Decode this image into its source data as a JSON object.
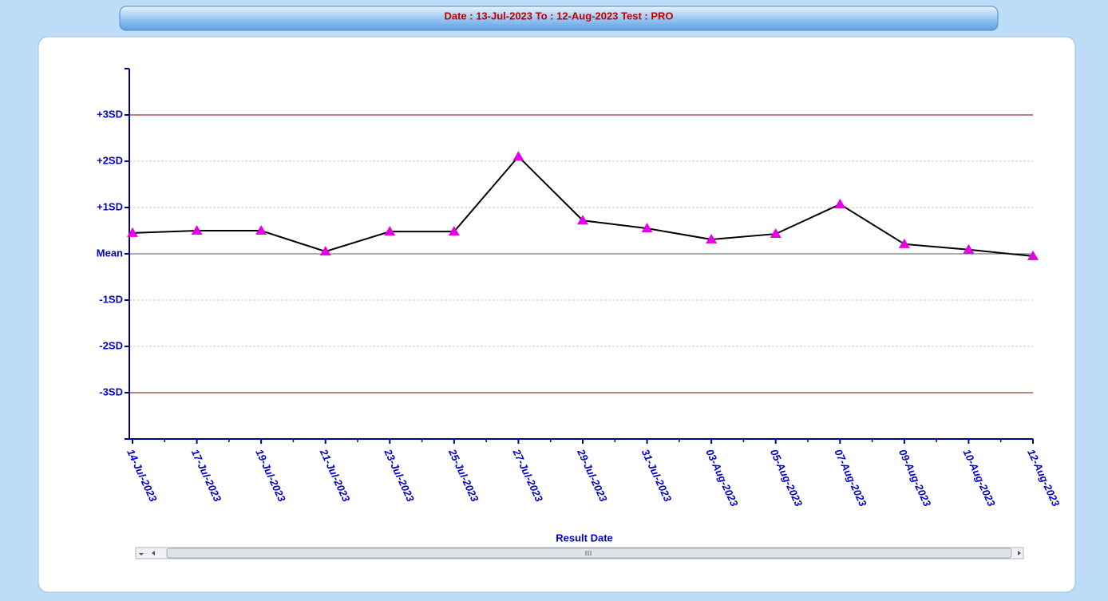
{
  "chart_data": {
    "type": "line",
    "title": "Date : 13-Jul-2023   To : 12-Aug-2023   Test : PRO",
    "x_label": "Result Date",
    "categories": [
      "14-Jul-2023",
      "17-Jul-2023",
      "19-Jul-2023",
      "21-Jul-2023",
      "23-Jul-2023",
      "25-Jul-2023",
      "27-Jul-2023",
      "29-Jul-2023",
      "31-Jul-2023",
      "03-Aug-2023",
      "05-Aug-2023",
      "07-Aug-2023",
      "09-Aug-2023",
      "10-Aug-2023",
      "12-Aug-2023"
    ],
    "series": [
      {
        "color": "#000000",
        "marker_color": "#e600e6",
        "values": [
          0.45,
          0.5,
          0.5,
          0.05,
          0.48,
          0.48,
          2.1,
          0.72,
          0.55,
          0.31,
          0.43,
          1.07,
          0.21,
          0.09,
          -0.05
        ]
      }
    ],
    "ylim": [
      -4,
      4
    ],
    "yticks": [
      {
        "value": -3,
        "label": "-3SD"
      },
      {
        "value": -2,
        "label": "-2SD"
      },
      {
        "value": -1,
        "label": "-1SD"
      },
      {
        "value": 0,
        "label": "Mean"
      },
      {
        "value": 1,
        "label": "+1SD"
      },
      {
        "value": 2,
        "label": "+2SD"
      },
      {
        "value": 3,
        "label": "+3SD"
      }
    ],
    "grid": true,
    "limit_color": "#800000"
  }
}
